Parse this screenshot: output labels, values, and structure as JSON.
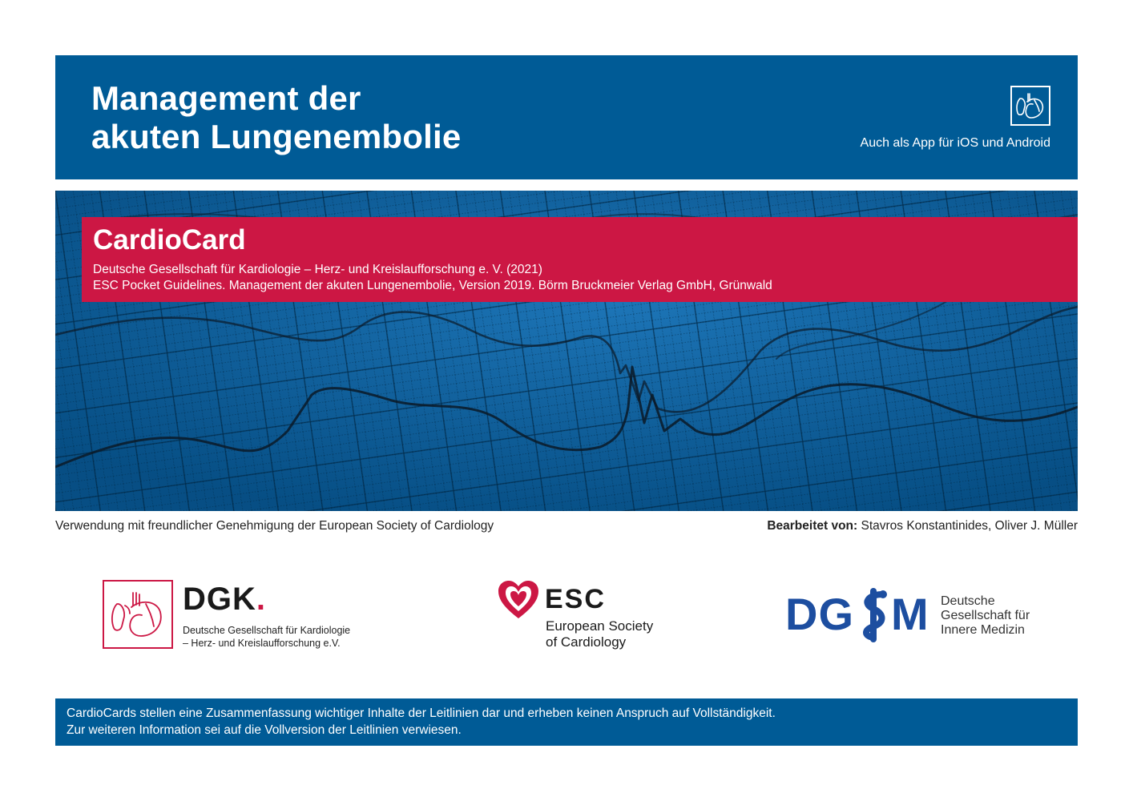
{
  "header": {
    "title_line1": "Management der",
    "title_line2": "akuten Lungenembolie",
    "app_note": "Auch als App für iOS und Android",
    "app_icon": "heart-lung-icon"
  },
  "card": {
    "title": "CardioCard",
    "line1": "Deutsche Gesellschaft für Kardiologie – Herz- und Kreislaufforschung e. V. (2021)",
    "line2": "ESC Pocket Guidelines. Management der akuten Lungenembolie, Version 2019. Börm Bruckmeier Verlag GmbH, Grünwald"
  },
  "credits": {
    "permission": "Verwendung mit freundlicher Genehmigung der European Society of Cardiology",
    "edited_label": "Bearbeitet von:",
    "edited_names": " Stavros Konstantinides, Oliver J. Müller"
  },
  "logos": {
    "dgk": {
      "mark": "DGK",
      "dot": ".",
      "line1": "Deutsche Gesellschaft für Kardiologie",
      "line2": "– Herz- und Kreislaufforschung e.V."
    },
    "esc": {
      "mark": "ESC",
      "line1": "European Society",
      "line2": "of Cardiology"
    },
    "dgim": {
      "mark_left": "DG",
      "mark_right": "M",
      "line1": "Deutsche",
      "line2": "Gesellschaft für",
      "line3": "Innere Medizin"
    }
  },
  "footer": {
    "line1": "CardioCards stellen eine Zusammenfassung wichtiger Inhalte der Leitlinien dar und erheben keinen Anspruch auf Vollständigkeit.",
    "line2": "Zur weiteren Information sei auf die Vollversion der Leitlinien verwiesen."
  },
  "colors": {
    "blue": "#005b96",
    "red": "#cc1744",
    "dgim_blue": "#1d4ea0"
  }
}
